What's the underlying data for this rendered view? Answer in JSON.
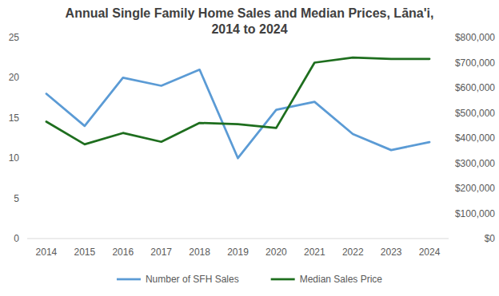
{
  "chart_data": {
    "type": "line",
    "title": "Annual Single Family Home Sales and Median Prices, Lāna'i, 2014 to 2024",
    "categories": [
      "2014",
      "2015",
      "2016",
      "2017",
      "2018",
      "2019",
      "2020",
      "2021",
      "2022",
      "2023",
      "2024"
    ],
    "series": [
      {
        "name": "Number of SFH Sales",
        "color": "#5b9bd5",
        "values": [
          18,
          14,
          20,
          19,
          21,
          10,
          16,
          17,
          13,
          11,
          12
        ]
      },
      {
        "name": "Median Sales Price",
        "color": "#1e6e1e",
        "axis": "y2",
        "values": [
          465000,
          375000,
          420000,
          385000,
          460000,
          455000,
          440000,
          700000,
          720000,
          715000,
          715000
        ]
      }
    ],
    "ylim": [
      0,
      25
    ],
    "yticks": [
      0,
      5,
      10,
      15,
      20,
      25
    ],
    "y2lim": [
      0,
      800000
    ],
    "y2ticks": [
      {
        "value": 0,
        "label": "$0"
      },
      {
        "value": 100000,
        "label": "$100,000"
      },
      {
        "value": 200000,
        "label": "$200,000"
      },
      {
        "value": 300000,
        "label": "$300,000"
      },
      {
        "value": 400000,
        "label": "$400,000"
      },
      {
        "value": 500000,
        "label": "$500,000"
      },
      {
        "value": 600000,
        "label": "$600,000"
      },
      {
        "value": 700000,
        "label": "$700,000"
      },
      {
        "value": 800000,
        "label": "$800,000"
      }
    ],
    "grid": false,
    "legend": "bottom"
  }
}
